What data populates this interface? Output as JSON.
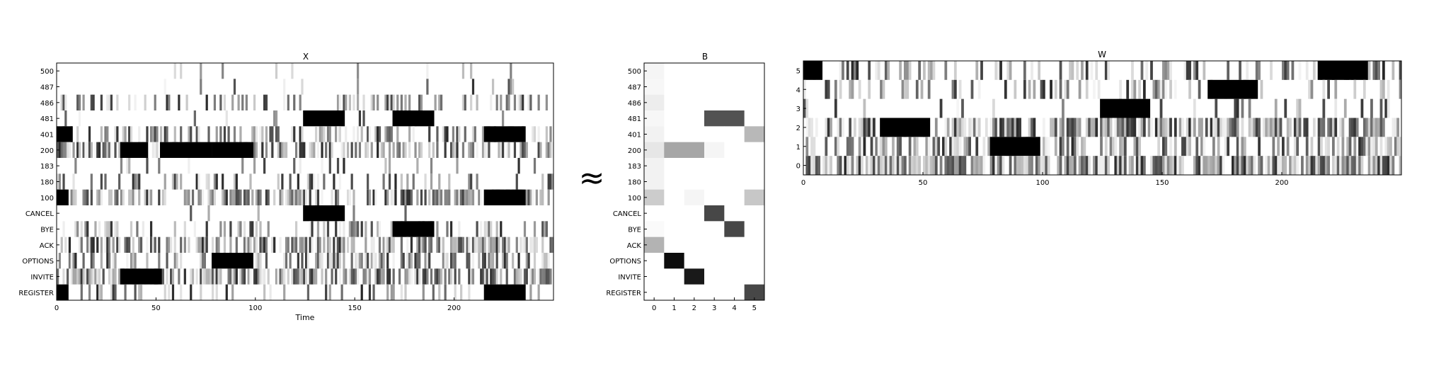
{
  "approx_symbol": "≈",
  "chart_data": [
    {
      "type": "heatmap",
      "title": "X",
      "xlabel": "Time",
      "ylabel": "",
      "xlim": [
        0,
        250
      ],
      "xticks": [
        0,
        50,
        100,
        150,
        200
      ],
      "rows": [
        "500",
        "487",
        "486",
        "481",
        "401",
        "200",
        "183",
        "180",
        "100",
        "CANCEL",
        "BYE",
        "ACK",
        "OPTIONS",
        "INVITE",
        "REGISTER"
      ],
      "colormap": "grayscale (white = 0, black = max)",
      "solid_blocks": [
        {
          "row": "481",
          "x": [
            124,
            145
          ]
        },
        {
          "row": "481",
          "x": [
            169,
            190
          ]
        },
        {
          "row": "401",
          "x": [
            0,
            8
          ]
        },
        {
          "row": "401",
          "x": [
            215,
            236
          ]
        },
        {
          "row": "200",
          "x": [
            32,
            46
          ]
        },
        {
          "row": "200",
          "x": [
            52,
            78
          ]
        },
        {
          "row": "200",
          "x": [
            78,
            99
          ]
        },
        {
          "row": "100",
          "x": [
            0,
            6
          ]
        },
        {
          "row": "100",
          "x": [
            215,
            236
          ]
        },
        {
          "row": "CANCEL",
          "x": [
            124,
            145
          ]
        },
        {
          "row": "BYE",
          "x": [
            169,
            190
          ]
        },
        {
          "row": "OPTIONS",
          "x": [
            78,
            99
          ]
        },
        {
          "row": "INVITE",
          "x": [
            32,
            53
          ]
        },
        {
          "row": "REGISTER",
          "x": [
            0,
            6
          ]
        },
        {
          "row": "REGISTER",
          "x": [
            215,
            236
          ]
        }
      ]
    },
    {
      "type": "heatmap",
      "title": "B",
      "xlabel": "",
      "ylabel": "",
      "columns": [
        "0",
        "1",
        "2",
        "3",
        "4",
        "5"
      ],
      "rows": [
        "500",
        "487",
        "486",
        "481",
        "401",
        "200",
        "183",
        "180",
        "100",
        "CANCEL",
        "BYE",
        "ACK",
        "OPTIONS",
        "INVITE",
        "REGISTER"
      ],
      "colormap": "grayscale (white = 0, black = 1)",
      "values": [
        [
          0.04,
          0,
          0,
          0,
          0,
          0
        ],
        [
          0.03,
          0,
          0,
          0,
          0,
          0
        ],
        [
          0.07,
          0,
          0,
          0,
          0,
          0
        ],
        [
          0.03,
          0,
          0,
          0.68,
          0.68,
          0
        ],
        [
          0.05,
          0,
          0,
          0,
          0,
          0.28
        ],
        [
          0.1,
          0.35,
          0.35,
          0.04,
          0,
          0
        ],
        [
          0.05,
          0,
          0,
          0,
          0,
          0
        ],
        [
          0.05,
          0,
          0,
          0,
          0,
          0
        ],
        [
          0.2,
          0,
          0.04,
          0,
          0,
          0.22
        ],
        [
          0,
          0,
          0,
          0.72,
          0,
          0
        ],
        [
          0.02,
          0,
          0,
          0,
          0.72,
          0
        ],
        [
          0.3,
          0,
          0,
          0,
          0,
          0
        ],
        [
          0,
          0.95,
          0,
          0,
          0,
          0
        ],
        [
          0,
          0,
          0.9,
          0,
          0,
          0
        ],
        [
          0,
          0,
          0,
          0,
          0,
          0.72
        ]
      ]
    },
    {
      "type": "heatmap",
      "title": "W",
      "xlabel": "",
      "ylabel": "",
      "xlim": [
        0,
        250
      ],
      "xticks": [
        0,
        50,
        100,
        150,
        200
      ],
      "rows": [
        "5",
        "4",
        "3",
        "2",
        "1",
        "0"
      ],
      "colormap": "grayscale (white = 0, black = max)",
      "solid_blocks": [
        {
          "row": "5",
          "x": [
            0,
            8
          ]
        },
        {
          "row": "5",
          "x": [
            215,
            236
          ]
        },
        {
          "row": "4",
          "x": [
            169,
            190
          ]
        },
        {
          "row": "3",
          "x": [
            124,
            145
          ]
        },
        {
          "row": "2",
          "x": [
            32,
            53
          ]
        },
        {
          "row": "1",
          "x": [
            78,
            99
          ]
        }
      ]
    }
  ]
}
